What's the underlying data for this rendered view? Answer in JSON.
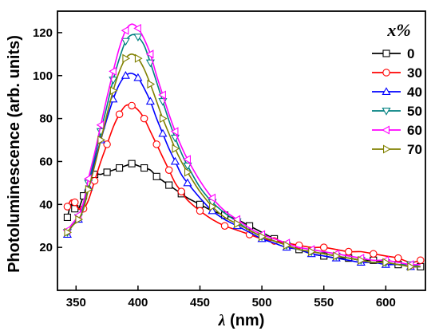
{
  "chart_data": {
    "type": "line",
    "xlabel_symbol": "λ",
    "xlabel_unit": " (nm)",
    "ylabel": "Photoluminescence (arb. units)",
    "xlim": [
      335,
      632
    ],
    "ylim": [
      0,
      130
    ],
    "x_ticks": [
      350,
      400,
      450,
      500,
      550,
      600
    ],
    "y_ticks": [
      20,
      40,
      60,
      80,
      100,
      120
    ],
    "legend_title_symbol": "x",
    "legend_title_unit": "%",
    "legend_position": "top-right",
    "grid": false,
    "series": [
      {
        "name": "0",
        "color": "#000000",
        "marker": "square",
        "x": [
          343,
          346,
          349,
          352,
          356,
          360,
          365,
          370,
          375,
          380,
          385,
          390,
          395,
          400,
          405,
          410,
          415,
          420,
          425,
          430,
          435,
          440,
          450,
          460,
          470,
          480,
          490,
          500,
          510,
          520,
          530,
          540,
          550,
          560,
          570,
          580,
          590,
          600,
          610,
          620,
          628
        ],
        "y": [
          34,
          40,
          38,
          38,
          44,
          50,
          54,
          54,
          55,
          56,
          57,
          58,
          59,
          58,
          57,
          56,
          53,
          51,
          49,
          47,
          45,
          43,
          40,
          37,
          35,
          33,
          30,
          27,
          24,
          21,
          19,
          17,
          16,
          15,
          15,
          14,
          14,
          13,
          12,
          12,
          11
        ]
      },
      {
        "name": "30",
        "color": "#ff0000",
        "marker": "circle",
        "x": [
          343,
          346,
          349,
          352,
          356,
          360,
          365,
          370,
          375,
          380,
          385,
          390,
          395,
          400,
          405,
          410,
          415,
          420,
          425,
          430,
          435,
          440,
          450,
          460,
          470,
          480,
          490,
          500,
          510,
          520,
          530,
          540,
          550,
          560,
          570,
          580,
          590,
          600,
          610,
          620,
          628
        ],
        "y": [
          39,
          42,
          41,
          38,
          38,
          42,
          51,
          60,
          68,
          76,
          82,
          86,
          86,
          84,
          80,
          74,
          68,
          62,
          56,
          50,
          46,
          42,
          37,
          33,
          30,
          28,
          26,
          24,
          23,
          22,
          21,
          20,
          20,
          19,
          18,
          18,
          17,
          16,
          15,
          13,
          14
        ]
      },
      {
        "name": "40",
        "color": "#0000ff",
        "marker": "triangle-up",
        "x": [
          343,
          347,
          352,
          356,
          360,
          365,
          370,
          375,
          380,
          385,
          390,
          395,
          400,
          405,
          410,
          415,
          420,
          425,
          430,
          435,
          440,
          450,
          460,
          470,
          480,
          490,
          500,
          510,
          520,
          530,
          540,
          550,
          560,
          570,
          580,
          590,
          600,
          610,
          620,
          628
        ],
        "y": [
          26,
          30,
          33,
          38,
          48,
          60,
          70,
          80,
          89,
          96,
          100,
          101,
          99,
          94,
          88,
          80,
          73,
          66,
          60,
          54,
          50,
          43,
          37,
          33,
          30,
          27,
          24,
          22,
          20,
          19,
          17,
          16,
          15,
          14,
          13,
          13,
          12,
          12,
          11,
          11
        ]
      },
      {
        "name": "50",
        "color": "#008080",
        "marker": "triangle-down",
        "x": [
          343,
          347,
          352,
          356,
          360,
          365,
          370,
          375,
          380,
          385,
          390,
          395,
          400,
          405,
          410,
          415,
          420,
          425,
          430,
          435,
          440,
          450,
          460,
          470,
          480,
          490,
          500,
          510,
          520,
          530,
          540,
          550,
          560,
          570,
          580,
          590,
          600,
          610,
          620,
          628
        ],
        "y": [
          27,
          30,
          34,
          40,
          50,
          62,
          74,
          86,
          98,
          108,
          116,
          119,
          118,
          114,
          106,
          97,
          88,
          79,
          71,
          64,
          58,
          48,
          41,
          36,
          32,
          28,
          25,
          23,
          21,
          19,
          18,
          17,
          16,
          15,
          14,
          13,
          13,
          12,
          12,
          11
        ]
      },
      {
        "name": "60",
        "color": "#ff00ff",
        "marker": "triangle-left",
        "x": [
          343,
          347,
          352,
          356,
          360,
          365,
          370,
          375,
          380,
          385,
          390,
          395,
          400,
          405,
          410,
          415,
          420,
          425,
          430,
          435,
          440,
          450,
          460,
          470,
          480,
          490,
          500,
          510,
          520,
          530,
          540,
          550,
          560,
          570,
          580,
          590,
          600,
          610,
          620,
          628
        ],
        "y": [
          28,
          31,
          35,
          41,
          52,
          64,
          77,
          90,
          102,
          113,
          121,
          124,
          122,
          117,
          110,
          100,
          91,
          82,
          74,
          67,
          61,
          51,
          43,
          37,
          33,
          29,
          26,
          24,
          22,
          20,
          19,
          18,
          17,
          16,
          15,
          14,
          14,
          13,
          12,
          12
        ]
      },
      {
        "name": "70",
        "color": "#808000",
        "marker": "triangle-right",
        "x": [
          343,
          347,
          352,
          356,
          360,
          365,
          370,
          375,
          380,
          385,
          390,
          395,
          400,
          405,
          410,
          415,
          420,
          425,
          430,
          435,
          440,
          450,
          460,
          470,
          480,
          490,
          500,
          510,
          520,
          530,
          540,
          550,
          560,
          570,
          580,
          590,
          600,
          610,
          620,
          628
        ],
        "y": [
          27,
          30,
          33,
          38,
          47,
          58,
          70,
          82,
          93,
          102,
          108,
          110,
          108,
          103,
          96,
          88,
          80,
          73,
          66,
          60,
          55,
          46,
          39,
          34,
          31,
          28,
          25,
          23,
          21,
          19,
          18,
          17,
          16,
          15,
          14,
          13,
          13,
          12,
          11,
          11
        ]
      }
    ]
  }
}
